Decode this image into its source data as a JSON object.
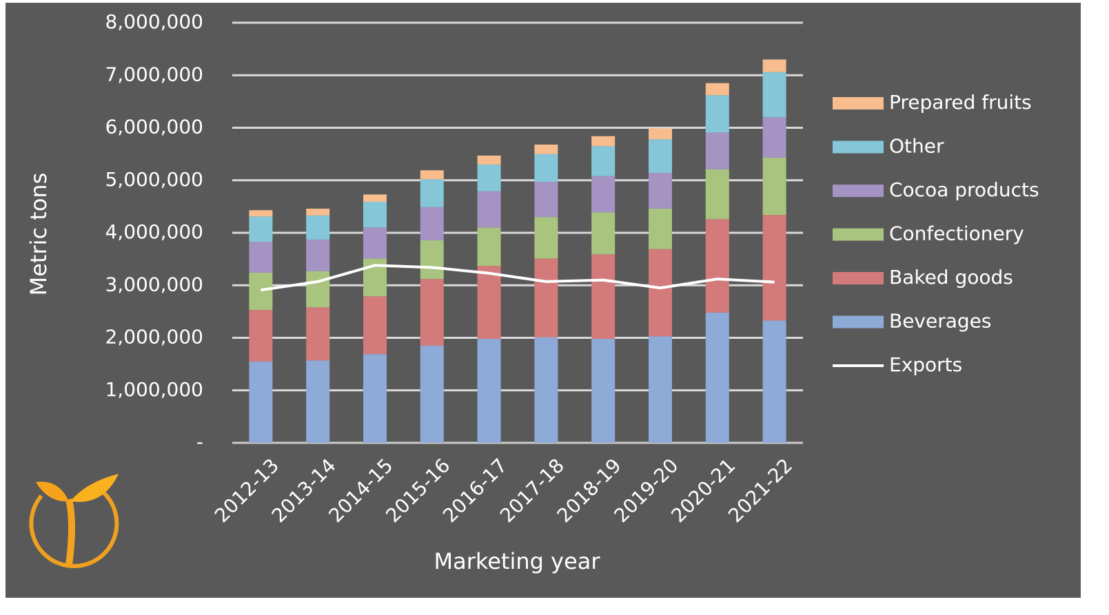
{
  "chart_data": {
    "type": "bar",
    "stacked": true,
    "x_label": "Marketing year",
    "y_label": "Metric tons",
    "categories": [
      "2012-13",
      "2013-14",
      "2014-15",
      "2015-16",
      "2016-17",
      "2017-18",
      "2018-19",
      "2019-20",
      "2020-21",
      "2021-22"
    ],
    "series": [
      {
        "name": "Beverages",
        "color": "#8eaad6",
        "values": [
          1550000,
          1570000,
          1690000,
          1850000,
          1980000,
          2010000,
          1980000,
          2030000,
          2480000,
          2330000
        ]
      },
      {
        "name": "Baked goods",
        "color": "#d27b7a",
        "values": [
          980000,
          1010000,
          1100000,
          1270000,
          1390000,
          1500000,
          1610000,
          1660000,
          1780000,
          2010000
        ]
      },
      {
        "name": "Confectionery",
        "color": "#a8c47e",
        "values": [
          710000,
          690000,
          720000,
          740000,
          730000,
          790000,
          800000,
          770000,
          950000,
          1090000
        ]
      },
      {
        "name": "Cocoa products",
        "color": "#a493c3",
        "values": [
          590000,
          600000,
          590000,
          630000,
          690000,
          670000,
          690000,
          680000,
          700000,
          770000
        ]
      },
      {
        "name": "Other",
        "color": "#85c7d9",
        "values": [
          480000,
          460000,
          490000,
          530000,
          510000,
          530000,
          570000,
          640000,
          710000,
          860000
        ]
      },
      {
        "name": "Prepared fruits",
        "color": "#f8bd8e",
        "values": [
          120000,
          130000,
          140000,
          170000,
          170000,
          180000,
          190000,
          210000,
          230000,
          240000
        ]
      },
      {
        "name": "Exports",
        "type": "line",
        "color": "#ffffff",
        "values": [
          2910000,
          3070000,
          3380000,
          3340000,
          3230000,
          3070000,
          3100000,
          2950000,
          3120000,
          3060000
        ]
      }
    ],
    "ylim": [
      0,
      8000000
    ],
    "yticks": [
      {
        "value": 0,
        "label": "-"
      },
      {
        "value": 1000000,
        "label": "1,000,000"
      },
      {
        "value": 2000000,
        "label": "2,000,000"
      },
      {
        "value": 3000000,
        "label": "3,000,000"
      },
      {
        "value": 4000000,
        "label": "4,000,000"
      },
      {
        "value": 5000000,
        "label": "5,000,000"
      },
      {
        "value": 6000000,
        "label": "6,000,000"
      },
      {
        "value": 7000000,
        "label": "7,000,000"
      },
      {
        "value": 8000000,
        "label": "8,000,000"
      }
    ],
    "grid": true,
    "legend": "right"
  }
}
